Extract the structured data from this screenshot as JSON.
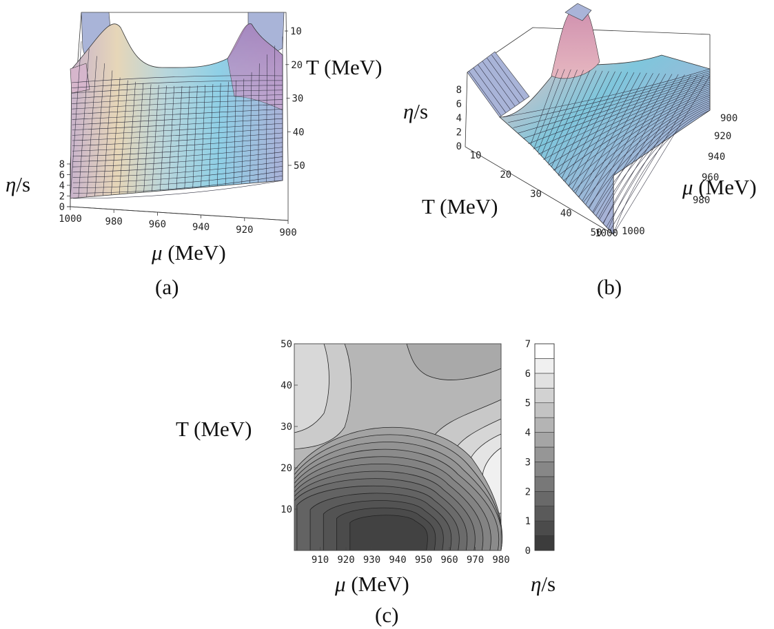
{
  "chart_data": [
    {
      "type": "surface",
      "caption": "(a)",
      "xlabel": "μ (MeV)",
      "ylabel": "T (MeV)",
      "zlabel": "η/s",
      "x_ticks": [
        "1000",
        "980",
        "960",
        "940",
        "920",
        "900"
      ],
      "y_ticks": [
        "10",
        "20",
        "30",
        "40",
        "50"
      ],
      "z_ticks": [
        "0",
        "2",
        "4",
        "6",
        "8"
      ],
      "xlim": [
        900,
        1000
      ],
      "ylim": [
        10,
        50
      ],
      "zlim": [
        0,
        8
      ],
      "mu_grid": [
        1000,
        990,
        980,
        970,
        960,
        950,
        940,
        930,
        920,
        910,
        900
      ],
      "T_grid": [
        10,
        15,
        20,
        25,
        30,
        35,
        40,
        45,
        50
      ],
      "eta_s": [
        [
          8,
          8,
          8,
          7.8,
          6.6,
          5.8,
          6.2,
          7.4,
          8,
          8,
          8
        ],
        [
          8,
          7.4,
          7.0,
          5.6,
          4.4,
          3.8,
          4.2,
          5.4,
          7.2,
          8,
          8
        ],
        [
          6.8,
          6.2,
          5.4,
          4.2,
          3.2,
          2.6,
          2.8,
          3.8,
          5.4,
          6.8,
          7.4
        ],
        [
          5.8,
          5.4,
          4.8,
          3.8,
          3.0,
          2.4,
          2.4,
          3.0,
          4.0,
          5.0,
          5.4
        ],
        [
          5.2,
          5.0,
          4.6,
          3.9,
          3.2,
          2.8,
          2.7,
          3.0,
          3.6,
          4.2,
          4.4
        ],
        [
          5.0,
          4.8,
          4.5,
          4.1,
          3.6,
          3.3,
          3.1,
          3.3,
          3.6,
          4.0,
          4.2
        ],
        [
          4.8,
          4.7,
          4.5,
          4.2,
          3.9,
          3.7,
          3.6,
          3.6,
          3.8,
          4.0,
          4.1
        ],
        [
          4.7,
          4.6,
          4.5,
          4.3,
          4.1,
          3.9,
          3.8,
          3.8,
          3.9,
          4.0,
          4.0
        ],
        [
          4.6,
          4.5,
          4.4,
          4.3,
          4.2,
          4.1,
          4.0,
          4.0,
          4.0,
          4.0,
          4.0
        ]
      ]
    },
    {
      "type": "surface",
      "caption": "(b)",
      "xlabel": "T (MeV)",
      "ylabel": "μ (MeV)",
      "zlabel": "η/s",
      "x_ticks": [
        "10",
        "20",
        "30",
        "40",
        "50"
      ],
      "y_ticks": [
        "900",
        "920",
        "940",
        "960",
        "980",
        "1000",
        "1000"
      ],
      "z_ticks": [
        "0",
        "2",
        "4",
        "6",
        "8"
      ],
      "xlim": [
        10,
        50
      ],
      "ylim": [
        900,
        1000
      ],
      "zlim": [
        0,
        8
      ]
    },
    {
      "type": "contour",
      "caption": "(c)",
      "xlabel": "μ (MeV)",
      "ylabel": "T (MeV)",
      "colorbar_label": "η/s",
      "x_ticks": [
        "910",
        "920",
        "930",
        "940",
        "950",
        "960",
        "970",
        "980"
      ],
      "y_ticks": [
        "10",
        "20",
        "30",
        "40",
        "50"
      ],
      "colorbar_ticks": [
        "0",
        "1",
        "2",
        "3",
        "4",
        "5",
        "6",
        "7"
      ],
      "xlim": [
        900,
        980
      ],
      "ylim": [
        0,
        50
      ],
      "zlim": [
        0,
        7
      ],
      "levels": [
        0.5,
        1.0,
        1.5,
        2.0,
        2.5,
        3.0,
        3.5,
        4.0,
        4.5,
        5.0,
        5.5,
        6.0,
        6.5
      ],
      "minimum": {
        "mu": 940,
        "T": 4,
        "eta_s": 0.3
      }
    }
  ]
}
